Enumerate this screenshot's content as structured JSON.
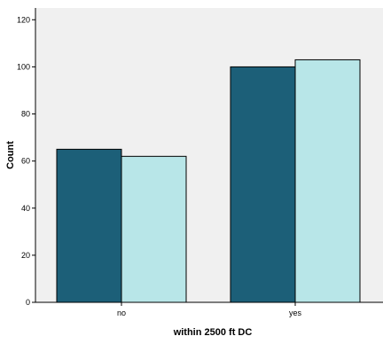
{
  "chart_data": {
    "type": "bar",
    "title": "",
    "xlabel": "within 2500 ft DC",
    "ylabel": "Count",
    "categories": [
      "no",
      "yes"
    ],
    "series": [
      {
        "values": [
          65,
          100
        ],
        "color": "#1c5f78"
      },
      {
        "values": [
          62,
          103
        ],
        "color": "#b8e6e8"
      }
    ],
    "ylim": [
      0,
      125
    ],
    "yticks": [
      0,
      20,
      40,
      60,
      80,
      100,
      120
    ],
    "ytick_labels": [
      "0",
      "20",
      "40",
      "60",
      "80",
      "100",
      "120"
    ],
    "grid": false,
    "legend": "none",
    "plot_background": "#f0f0f0"
  }
}
